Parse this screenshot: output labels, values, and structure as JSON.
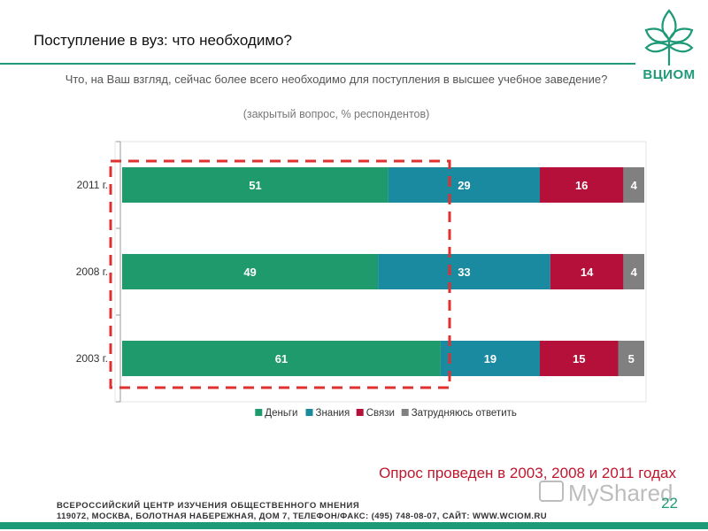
{
  "slide": {
    "title": "Поступление в вуз: что необходимо?",
    "question": "Что, на Ваш взгляд, сейчас более всего необходимо для поступления в высшее учебное заведение?",
    "subtitle": "(закрытый вопрос, % респондентов)",
    "note": "Опрос проведен в 2003, 2008 и 2011 годах",
    "page_number": "22"
  },
  "logo": {
    "text": "ВЦИОМ"
  },
  "footer": {
    "org": "ВСЕРОССИЙСКИЙ ЦЕНТР ИЗУЧЕНИЯ ОБЩЕСТВЕННОГО МНЕНИЯ",
    "address": "119072, МОСКВА, БОЛОТНАЯ НАБЕРЕЖНАЯ, ДОМ 7, ТЕЛЕФОН/ФАКС: (495) 748-08-07, САЙТ: WWW.WCIOM.RU"
  },
  "watermark": {
    "text": "MyShared"
  },
  "colors": {
    "brand": "#1e9a78",
    "highlight": "#e03030",
    "note": "#c0172d"
  },
  "chart_data": {
    "type": "bar",
    "orientation": "horizontal",
    "stacked": true,
    "categories": [
      "2011 г.",
      "2008 г.",
      "2003 г."
    ],
    "series": [
      {
        "name": "Деньги",
        "values": [
          51,
          49,
          61
        ],
        "color": "#1e9a6c"
      },
      {
        "name": "Знания",
        "values": [
          29,
          33,
          19
        ],
        "color": "#1a8aa0"
      },
      {
        "name": "Связи",
        "values": [
          16,
          14,
          15
        ],
        "color": "#b5103a"
      },
      {
        "name": "Затрудняюсь ответить",
        "values": [
          4,
          4,
          5
        ],
        "color": "#808080"
      }
    ],
    "xlim": [
      0,
      100
    ],
    "legend": "bottom",
    "grid": false
  }
}
